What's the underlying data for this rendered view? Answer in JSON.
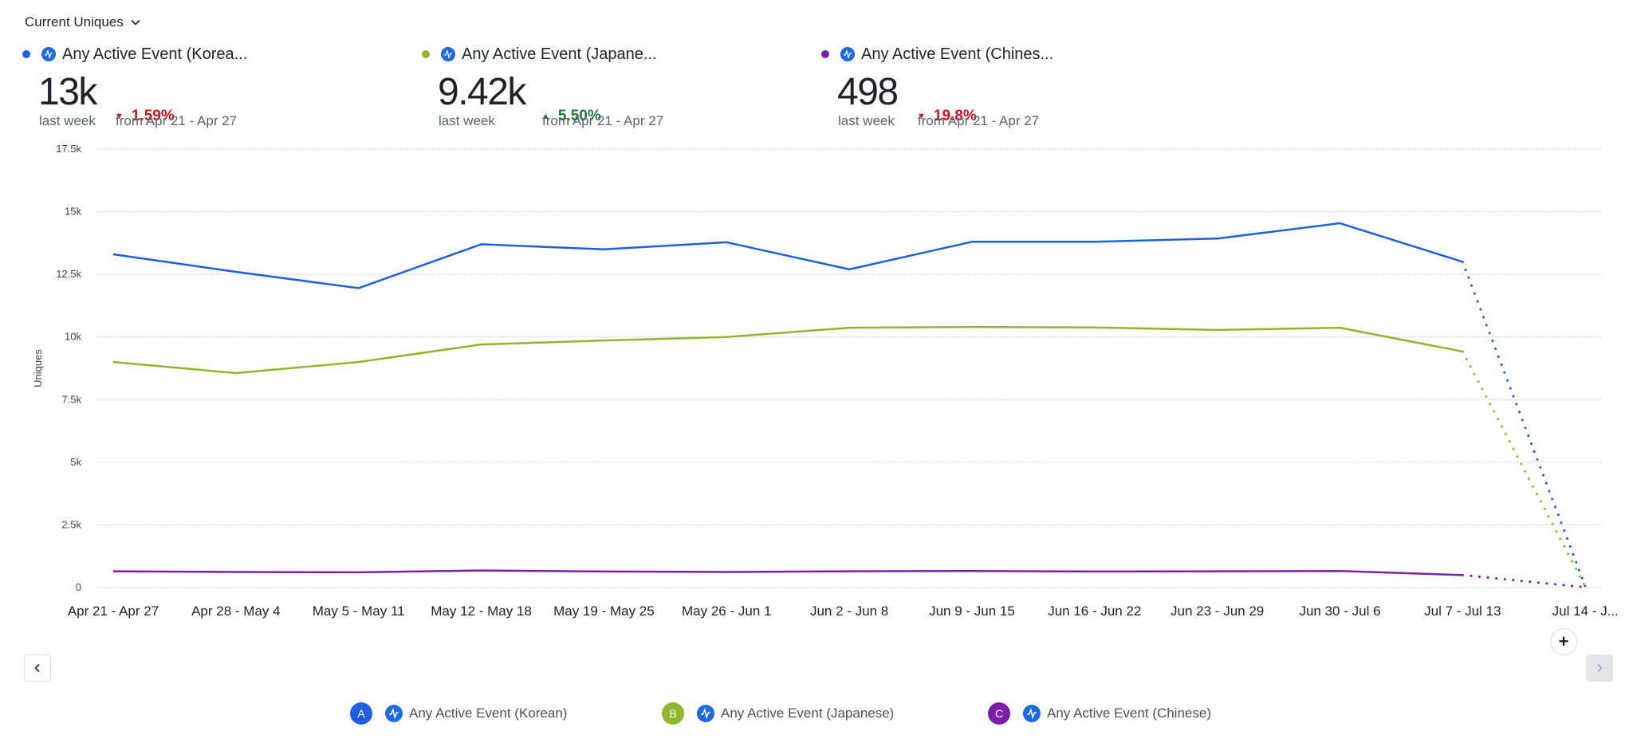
{
  "header": {
    "metric_selector_label": "Current Uniques"
  },
  "kpis": [
    {
      "series_key": "A",
      "title": "Any Active Event (Korea...",
      "value": "13k",
      "period_label": "last week",
      "delta": "1.59%",
      "delta_direction": "down",
      "comparison_label": "from Apr 21 - Apr 27",
      "color": "#1f5fde"
    },
    {
      "series_key": "B",
      "title": "Any Active Event (Japane...",
      "value": "9.42k",
      "period_label": "last week",
      "delta": "5.50%",
      "delta_direction": "up",
      "comparison_label": "from Apr 21 - Apr 27",
      "color": "#8fb62e"
    },
    {
      "series_key": "C",
      "title": "Any Active Event (Chines...",
      "value": "498",
      "period_label": "last week",
      "delta": "19.8%",
      "delta_direction": "down",
      "comparison_label": "from Apr 21 - Apr 27",
      "color": "#7b1fa8"
    }
  ],
  "status_colors": {
    "down": "#d1141b",
    "up": "#1f7a3f"
  },
  "controls": {
    "add_label": "+",
    "prev_icon": "chevron-left-icon",
    "next_icon": "chevron-right-icon"
  },
  "legend": [
    {
      "badge": "A",
      "label": "Any Active Event (Korean)",
      "color": "#1f5fde"
    },
    {
      "badge": "B",
      "label": "Any Active Event (Japanese)",
      "color": "#8fb62e"
    },
    {
      "badge": "C",
      "label": "Any Active Event (Chinese)",
      "color": "#7b1fa8"
    }
  ],
  "chart_data": {
    "type": "line",
    "title": "",
    "xlabel": "",
    "ylabel": "Uniques",
    "ylim": [
      0,
      17500
    ],
    "y_ticks": [
      0,
      2500,
      5000,
      7500,
      10000,
      12500,
      15000,
      17500
    ],
    "y_tick_labels": [
      "0",
      "2.5k",
      "5k",
      "7.5k",
      "10k",
      "12.5k",
      "15k",
      "17.5k"
    ],
    "grid": true,
    "legend_position": "bottom",
    "categories": [
      "Apr 21 - Apr 27",
      "Apr 28 - May 4",
      "May 5 - May 11",
      "May 12 - May 18",
      "May 19 - May 25",
      "May 26 - Jun 1",
      "Jun 2 - Jun 8",
      "Jun 9 - Jun 15",
      "Jun 16 - Jun 22",
      "Jun 23 - Jun 29",
      "Jun 30 - Jul 6",
      "Jul 7 - Jul 13",
      "Jul 14 - J..."
    ],
    "incomplete_last_period": true,
    "series": [
      {
        "name": "Any Active Event (Korean)",
        "color": "#1f5fde",
        "values": [
          13300,
          12600,
          11950,
          13700,
          13500,
          13780,
          12700,
          13800,
          13800,
          13930,
          14540,
          13000,
          40
        ]
      },
      {
        "name": "Any Active Event (Japanese)",
        "color": "#8fb62e",
        "values": [
          9000,
          8560,
          9000,
          9700,
          9860,
          10000,
          10370,
          10400,
          10380,
          10280,
          10370,
          9420,
          30
        ]
      },
      {
        "name": "Any Active Event (Chinese)",
        "color": "#7b1fa8",
        "values": [
          650,
          620,
          610,
          680,
          640,
          620,
          650,
          660,
          640,
          650,
          660,
          498,
          10
        ]
      }
    ]
  }
}
